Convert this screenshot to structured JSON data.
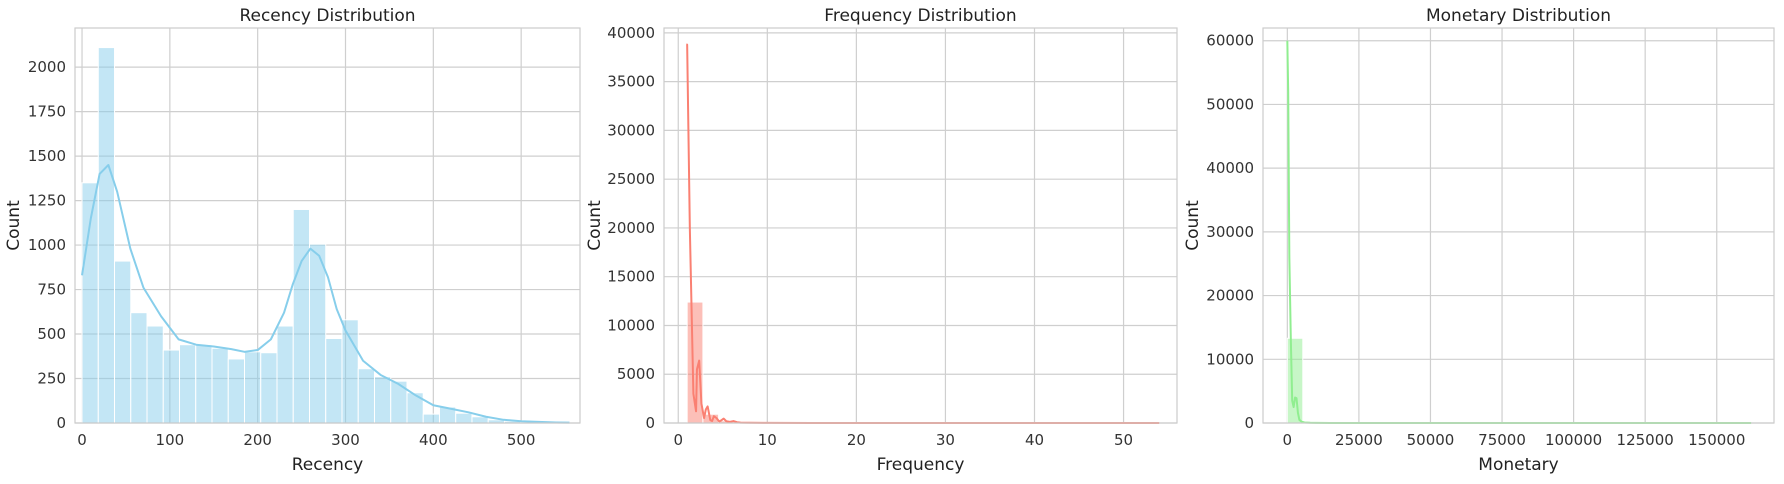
{
  "chart_data": [
    {
      "type": "bar",
      "title": "Recency Distribution",
      "xlabel": "Recency",
      "ylabel": "Count",
      "xlim": [
        -8,
        567
      ],
      "ylim": [
        0,
        2220
      ],
      "xticks": [
        0,
        100,
        200,
        300,
        400,
        500
      ],
      "yticks": [
        0,
        250,
        500,
        750,
        1000,
        1250,
        1500,
        1750,
        2000
      ],
      "grid": true,
      "color": "#87ceeb",
      "bin_edges": [
        0,
        18.5,
        37,
        55.5,
        74,
        92.5,
        111,
        129.5,
        148,
        166.5,
        185,
        203.5,
        222,
        240.5,
        259,
        277.5,
        296,
        314.5,
        333,
        351.5,
        370,
        388.5,
        407,
        425.5,
        444,
        462.5,
        481,
        499.5,
        518,
        536.5,
        555
      ],
      "counts": [
        1350,
        2110,
        910,
        620,
        545,
        410,
        440,
        440,
        420,
        360,
        400,
        395,
        545,
        1200,
        1005,
        475,
        580,
        305,
        260,
        235,
        170,
        50,
        90,
        55,
        35,
        18,
        10,
        6,
        4,
        2
      ],
      "kde": {
        "x": [
          0,
          10,
          20,
          30,
          40,
          55,
          70,
          90,
          110,
          130,
          150,
          170,
          185,
          200,
          215,
          230,
          240,
          250,
          260,
          270,
          280,
          290,
          300,
          320,
          340,
          360,
          380,
          400,
          420,
          440,
          460,
          480,
          500,
          520,
          540,
          555
        ],
        "y": [
          830,
          1150,
          1400,
          1450,
          1300,
          980,
          760,
          600,
          470,
          440,
          430,
          415,
          400,
          410,
          470,
          620,
          780,
          910,
          980,
          940,
          820,
          640,
          520,
          350,
          270,
          220,
          155,
          100,
          80,
          60,
          35,
          18,
          10,
          6,
          3,
          2
        ]
      }
    },
    {
      "type": "bar",
      "title": "Frequency Distribution",
      "xlabel": "Frequency",
      "ylabel": "Count",
      "xlim": [
        -1.6,
        56
      ],
      "ylim": [
        0,
        40500
      ],
      "xticks": [
        0,
        10,
        20,
        30,
        40,
        50
      ],
      "yticks": [
        0,
        5000,
        10000,
        15000,
        20000,
        25000,
        30000,
        35000,
        40000
      ],
      "grid": true,
      "color": "#fa8072",
      "bin_edges": [
        1,
        2.77,
        4.53,
        6.3,
        8.07,
        9.83,
        11.6,
        13.37,
        15.13,
        16.9,
        18.67,
        20.43,
        22.2,
        23.97,
        25.73,
        27.5,
        29.27,
        31.03,
        32.8,
        34.57,
        36.33,
        38.1,
        39.87,
        41.63,
        43.4,
        45.17,
        46.93,
        48.7,
        50.47,
        52.23,
        54
      ],
      "counts": [
        12400,
        900,
        220,
        60,
        25,
        10,
        6,
        4,
        2,
        1,
        1,
        1,
        0,
        0,
        0,
        0,
        0,
        0,
        0,
        0,
        0,
        0,
        0,
        0,
        0,
        0,
        0,
        0,
        0,
        1
      ],
      "kde": {
        "x": [
          0.9,
          1.0,
          1.3,
          1.7,
          2.0,
          2.1,
          2.35,
          2.6,
          2.9,
          3.1,
          3.3,
          3.6,
          3.8,
          4.0,
          4.3,
          4.6,
          4.8,
          5.1,
          5.4,
          5.8,
          6.2,
          6.6,
          7,
          8,
          10,
          15,
          20,
          30,
          40,
          50,
          54
        ],
        "y": [
          38800,
          38800,
          20000,
          3000,
          1200,
          5500,
          6400,
          2000,
          500,
          1400,
          1700,
          300,
          200,
          700,
          500,
          150,
          250,
          450,
          180,
          120,
          200,
          80,
          40,
          20,
          10,
          5,
          3,
          2,
          1,
          1,
          0
        ]
      }
    },
    {
      "type": "bar",
      "title": "Monetary Distribution",
      "xlabel": "Monetary",
      "ylabel": "Count",
      "xlim": [
        -8500,
        170000
      ],
      "ylim": [
        0,
        62000
      ],
      "xticks": [
        0,
        25000,
        50000,
        75000,
        100000,
        125000,
        150000
      ],
      "yticks": [
        0,
        10000,
        20000,
        30000,
        40000,
        50000,
        60000
      ],
      "grid": true,
      "color": "#90ee90",
      "bin_edges": [
        0,
        5400,
        10800,
        16200,
        21600,
        27000,
        32400,
        37800,
        43200,
        48600,
        54000,
        59400,
        64800,
        70200,
        75600,
        81000,
        86400,
        91800,
        97200,
        102600,
        108000,
        113400,
        118800,
        124200,
        129600,
        135000,
        140400,
        145800,
        151200,
        156600,
        162000
      ],
      "counts": [
        13300,
        150,
        40,
        15,
        8,
        5,
        3,
        2,
        1,
        1,
        0,
        0,
        0,
        0,
        0,
        0,
        0,
        0,
        0,
        0,
        0,
        0,
        0,
        0,
        0,
        0,
        0,
        0,
        0,
        1
      ],
      "kde": {
        "x": [
          0,
          300,
          700,
          1200,
          1700,
          2200,
          2700,
          3200,
          3700,
          4200,
          5000,
          6000,
          8000,
          10000,
          15000,
          20000,
          40000,
          80000,
          120000,
          162000
        ],
        "y": [
          60000,
          52000,
          26000,
          13500,
          3500,
          2500,
          4000,
          3900,
          1600,
          500,
          200,
          80,
          40,
          20,
          10,
          5,
          2,
          1,
          0,
          0
        ]
      }
    }
  ]
}
